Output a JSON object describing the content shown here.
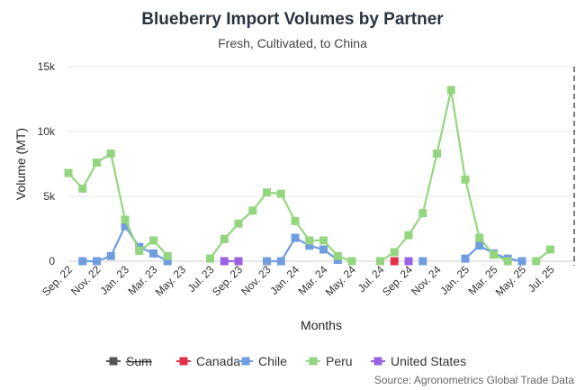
{
  "chart_data": {
    "type": "line",
    "title": "Blueberry Import Volumes by Partner",
    "subtitle": "Fresh, Cultivated, to China",
    "xlabel": "Months",
    "ylabel": "Volume (MT)",
    "ylim": [
      0,
      15000
    ],
    "y_ticks": [
      {
        "value": 0,
        "label": "0"
      },
      {
        "value": 5000,
        "label": "5k"
      },
      {
        "value": 10000,
        "label": "10k"
      },
      {
        "value": 15000,
        "label": "15k"
      }
    ],
    "x_categories": [
      "Sep. 22",
      "Oct. 22",
      "Nov. 22",
      "Dec. 22",
      "Jan. 23",
      "Feb. 23",
      "Mar. 23",
      "Apr. 23",
      "May. 23",
      "Jun. 23",
      "Jul. 23",
      "Aug. 23",
      "Sep. 23",
      "Oct. 23",
      "Nov. 23",
      "Dec. 23",
      "Jan. 24",
      "Feb. 24",
      "Mar. 24",
      "Apr. 24",
      "May. 24",
      "Jun. 24",
      "Jul. 24",
      "Aug. 24",
      "Sep. 24",
      "Oct. 24",
      "Nov. 24",
      "Dec. 24",
      "Jan. 25",
      "Feb. 25",
      "Mar. 25",
      "Apr. 25",
      "May. 25",
      "Jun. 25",
      "Jul. 25",
      "Aug. 25"
    ],
    "x_tick_labels": [
      "Sep. 22",
      "Nov. 22",
      "Jan. 23",
      "Mar. 23",
      "May. 23",
      "Jul. 23",
      "Sep. 23",
      "Nov. 23",
      "Jan. 24",
      "Mar. 24",
      "May. 24",
      "Jul. 24",
      "Sep. 24",
      "Nov. 24",
      "Jan. 25",
      "Mar. 25",
      "May. 25",
      "Jul. 25"
    ],
    "series": [
      {
        "name": "Sum",
        "color": "#555555",
        "hidden": true,
        "values": []
      },
      {
        "name": "Canada",
        "color": "#e0334a",
        "values": [
          null,
          null,
          null,
          null,
          null,
          null,
          null,
          null,
          null,
          null,
          null,
          null,
          null,
          null,
          null,
          null,
          null,
          null,
          null,
          null,
          null,
          null,
          null,
          0,
          null,
          null,
          null,
          null,
          null,
          null,
          null,
          null,
          null,
          null,
          null,
          null
        ]
      },
      {
        "name": "Chile",
        "color": "#6f9de0",
        "values": [
          null,
          0,
          0,
          400,
          2700,
          1100,
          600,
          0,
          null,
          null,
          null,
          null,
          null,
          null,
          0,
          0,
          1800,
          1200,
          900,
          100,
          null,
          null,
          null,
          null,
          null,
          0,
          null,
          null,
          200,
          1200,
          600,
          200,
          0,
          null,
          null,
          null
        ]
      },
      {
        "name": "Peru",
        "color": "#94d67f",
        "values": [
          6800,
          5600,
          7600,
          8300,
          3200,
          800,
          1600,
          400,
          null,
          null,
          200,
          1700,
          2900,
          3900,
          5300,
          5200,
          3100,
          1600,
          1600,
          400,
          0,
          null,
          0,
          700,
          2000,
          3700,
          8300,
          13200,
          6300,
          1800,
          500,
          0,
          null,
          0,
          900,
          null
        ]
      },
      {
        "name": "United States",
        "color": "#9a62e0",
        "values": [
          null,
          null,
          null,
          null,
          null,
          null,
          null,
          null,
          null,
          null,
          null,
          0,
          0,
          null,
          null,
          null,
          null,
          null,
          null,
          null,
          null,
          null,
          null,
          null,
          0,
          null,
          null,
          null,
          null,
          null,
          null,
          null,
          null,
          null,
          null,
          null
        ]
      }
    ],
    "legend_placement": "bottom",
    "grid": true
  },
  "source": "Source: Agronometrics Global Trade Data"
}
